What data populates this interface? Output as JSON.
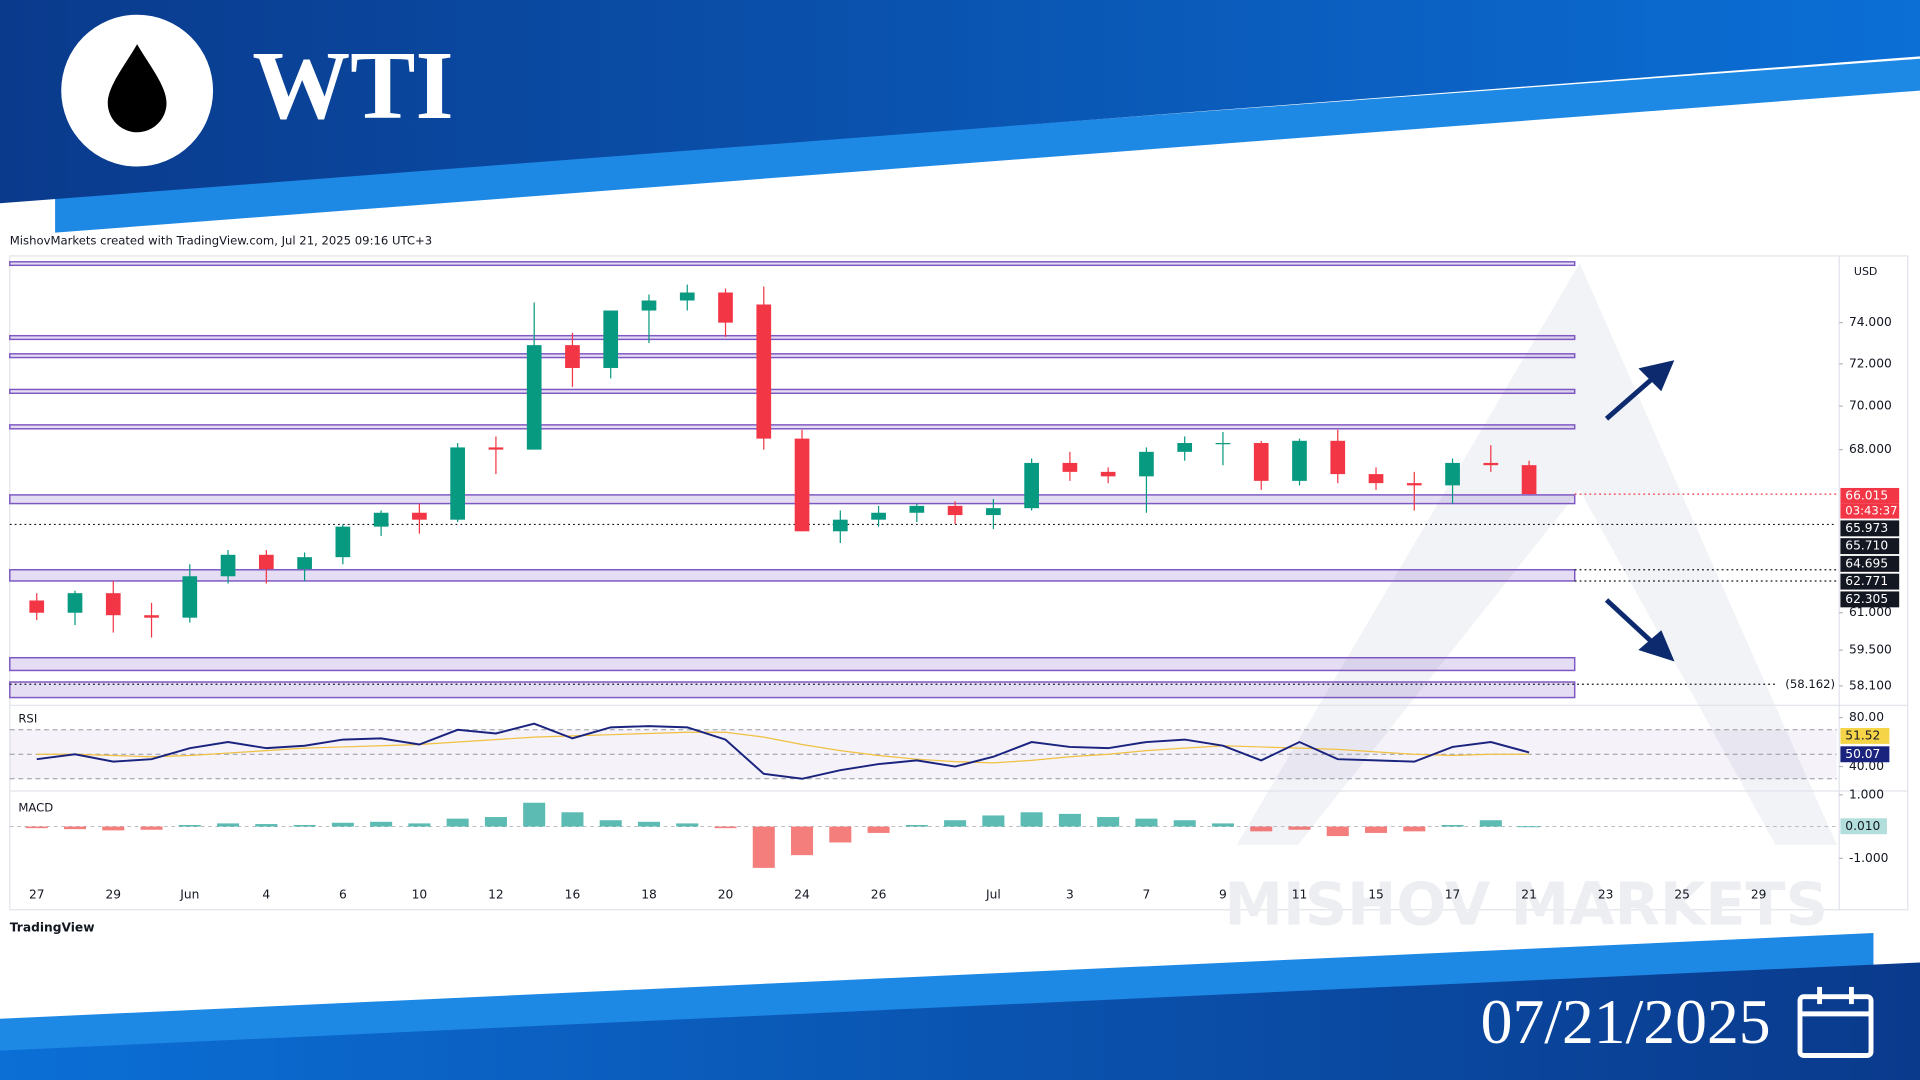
{
  "header": {
    "title": "WTI"
  },
  "footer": {
    "date": "07/21/2025"
  },
  "attribution": "MishovMarkets created with TradingView.com, Jul 21, 2025 09:16 UTC+3",
  "logo": "TradingView",
  "watermark": "MISHOV MARKETS",
  "chart_data": [
    {
      "type": "candlestick",
      "currency": "USD",
      "log_scale": true,
      "categories": [
        "27",
        null,
        "29",
        null,
        "Jun",
        null,
        "4",
        null,
        "6",
        null,
        "10",
        null,
        "12",
        null,
        "16",
        null,
        "18",
        null,
        "20",
        null,
        "24",
        null,
        "26",
        null,
        null,
        "Jul",
        null,
        "3",
        null,
        "7",
        null,
        "9",
        null,
        "11",
        null,
        "15",
        null,
        "17",
        null,
        "21",
        null,
        "23",
        null,
        "25",
        null,
        "29"
      ],
      "open": [
        61.5,
        61.0,
        61.8,
        60.9,
        60.8,
        62.5,
        63.4,
        62.8,
        63.3,
        64.6,
        65.2,
        64.9,
        68.1,
        68.0,
        72.9,
        71.8,
        74.6,
        75.1,
        75.5,
        74.9,
        68.5,
        64.4,
        64.9,
        65.2,
        65.5,
        65.1,
        65.4,
        67.4,
        67.0,
        66.8,
        67.9,
        68.3,
        68.3,
        66.6,
        68.4,
        66.9,
        66.5,
        66.4,
        67.4,
        67.3,
        null,
        null,
        null,
        null,
        null,
        null
      ],
      "high": [
        61.8,
        61.9,
        62.3,
        61.4,
        63.0,
        63.6,
        63.6,
        63.5,
        64.7,
        65.3,
        65.6,
        68.3,
        68.6,
        75.0,
        73.5,
        74.6,
        75.4,
        75.9,
        75.7,
        75.8,
        68.9,
        65.3,
        65.5,
        65.6,
        65.7,
        65.8,
        67.6,
        67.9,
        67.2,
        68.1,
        68.6,
        68.8,
        68.4,
        68.5,
        68.9,
        67.2,
        67.0,
        67.6,
        68.2,
        67.5,
        null,
        null,
        null,
        null,
        null,
        null
      ],
      "low": [
        60.7,
        60.5,
        60.2,
        60.0,
        60.6,
        62.2,
        62.2,
        62.3,
        63.0,
        64.2,
        64.3,
        64.8,
        66.9,
        68.0,
        70.9,
        71.3,
        73.0,
        74.6,
        73.3,
        68.0,
        64.4,
        63.9,
        64.6,
        64.8,
        64.7,
        64.5,
        65.3,
        66.6,
        66.5,
        65.2,
        67.5,
        67.3,
        66.2,
        66.4,
        66.5,
        66.2,
        65.3,
        65.6,
        67.0,
        66.0,
        null,
        null,
        null,
        null,
        null,
        null
      ],
      "close": [
        61.0,
        61.8,
        60.9,
        60.8,
        62.5,
        63.4,
        62.8,
        63.3,
        64.6,
        65.2,
        64.9,
        68.1,
        68.0,
        72.9,
        71.8,
        74.6,
        75.1,
        75.5,
        74.0,
        68.5,
        64.4,
        64.9,
        65.2,
        65.5,
        65.1,
        65.4,
        67.4,
        67.0,
        66.8,
        67.9,
        68.3,
        68.3,
        66.6,
        68.4,
        66.9,
        66.5,
        66.4,
        67.4,
        67.3,
        66.015,
        null,
        null,
        null,
        null,
        null,
        null
      ],
      "up_color": "#089981",
      "down_color": "#f23645",
      "ylim": [
        57.4,
        77.3
      ],
      "yticks": [
        {
          "value": 74,
          "label": "74.000"
        },
        {
          "value": 72,
          "label": "72.000"
        },
        {
          "value": 70,
          "label": "70.000"
        },
        {
          "value": 68,
          "label": "68.000"
        },
        {
          "value": 61,
          "label": "61.000"
        },
        {
          "value": 59.5,
          "label": "59.500"
        },
        {
          "value": 58.1,
          "label": "58.100"
        }
      ],
      "zones": [
        {
          "low": 76.88,
          "high": 77.06
        },
        {
          "low": 73.18,
          "high": 73.36
        },
        {
          "low": 72.3,
          "high": 72.48
        },
        {
          "low": 70.6,
          "high": 70.78
        },
        {
          "low": 68.95,
          "high": 69.13
        },
        {
          "low": 65.6,
          "high": 65.98
        },
        {
          "low": 62.305,
          "high": 62.771
        },
        {
          "low": 58.7,
          "high": 59.2
        },
        {
          "low": 57.65,
          "high": 58.25
        }
      ],
      "zone_color": "#7e57c2",
      "levels": [
        66.015,
        64.695,
        62.771,
        62.305,
        58.162
      ],
      "level_label": {
        "value": 58.162,
        "label": "(58.162)"
      },
      "badges": [
        {
          "value": 66.015,
          "label": "66.015",
          "color": "#f23645"
        },
        {
          "value": 65.973,
          "label": "65.973",
          "color": "#131722"
        },
        {
          "value": 65.71,
          "label": "65.710",
          "color": "#131722"
        },
        {
          "value": 64.695,
          "label": "64.695",
          "color": "#131722"
        },
        {
          "value": 62.771,
          "label": "62.771",
          "color": "#131722"
        },
        {
          "value": 62.305,
          "label": "62.305",
          "color": "#131722"
        }
      ],
      "countdown": "03:43:37"
    },
    {
      "type": "line",
      "title": "RSI",
      "series": [
        {
          "color": "#1a237e",
          "values": [
            46,
            50,
            44,
            46,
            55,
            60,
            55,
            57,
            62,
            63,
            58,
            70,
            67,
            75,
            63,
            72,
            73,
            72,
            62,
            34,
            30,
            37,
            42,
            45,
            40,
            48,
            60,
            56,
            55,
            60,
            62,
            57,
            45,
            60,
            46,
            45,
            44,
            56,
            60,
            51.52,
            null,
            null,
            null,
            null,
            null,
            null
          ]
        },
        {
          "color": "#f0c040",
          "values": [
            50,
            50,
            49,
            48,
            49,
            51,
            53,
            55,
            56,
            57,
            58,
            60,
            62,
            64,
            65,
            66,
            67,
            68,
            68,
            64,
            58,
            53,
            49,
            46,
            44,
            43,
            45,
            48,
            50,
            53,
            55,
            57,
            56,
            55,
            54,
            52,
            50,
            49,
            50,
            50.07,
            null,
            null,
            null,
            null,
            null,
            null
          ]
        }
      ],
      "ylim": [
        21,
        89
      ],
      "yticks": [
        {
          "value": 80,
          "label": "80.00"
        },
        {
          "value": 40,
          "label": "40.00"
        }
      ],
      "levels": [
        70,
        50,
        30
      ],
      "badges": [
        {
          "value": 51.52,
          "color": "#f5d547"
        },
        {
          "value": 50.07,
          "color": "#1a237e"
        }
      ]
    },
    {
      "type": "bar",
      "title": "MACD",
      "values": [
        -0.05,
        -0.08,
        -0.12,
        -0.1,
        0.05,
        0.1,
        0.08,
        0.05,
        0.12,
        0.15,
        0.1,
        0.25,
        0.3,
        0.75,
        0.45,
        0.2,
        0.15,
        0.1,
        -0.05,
        -1.3,
        -0.9,
        -0.5,
        -0.2,
        0.05,
        0.2,
        0.35,
        0.45,
        0.4,
        0.3,
        0.25,
        0.2,
        0.1,
        -0.15,
        -0.1,
        -0.3,
        -0.2,
        -0.15,
        0.05,
        0.2,
        0.01,
        null,
        null,
        null,
        null,
        null,
        null
      ],
      "up_color": "#26a69a",
      "down_color": "#ef5350",
      "ylim": [
        -1.54,
        1.08
      ],
      "yticks": [
        {
          "value": 1,
          "label": "1.000"
        },
        {
          "value": -1,
          "label": "-1.000"
        }
      ],
      "badge": {
        "value": 0.01,
        "label": "0.010"
      }
    }
  ]
}
